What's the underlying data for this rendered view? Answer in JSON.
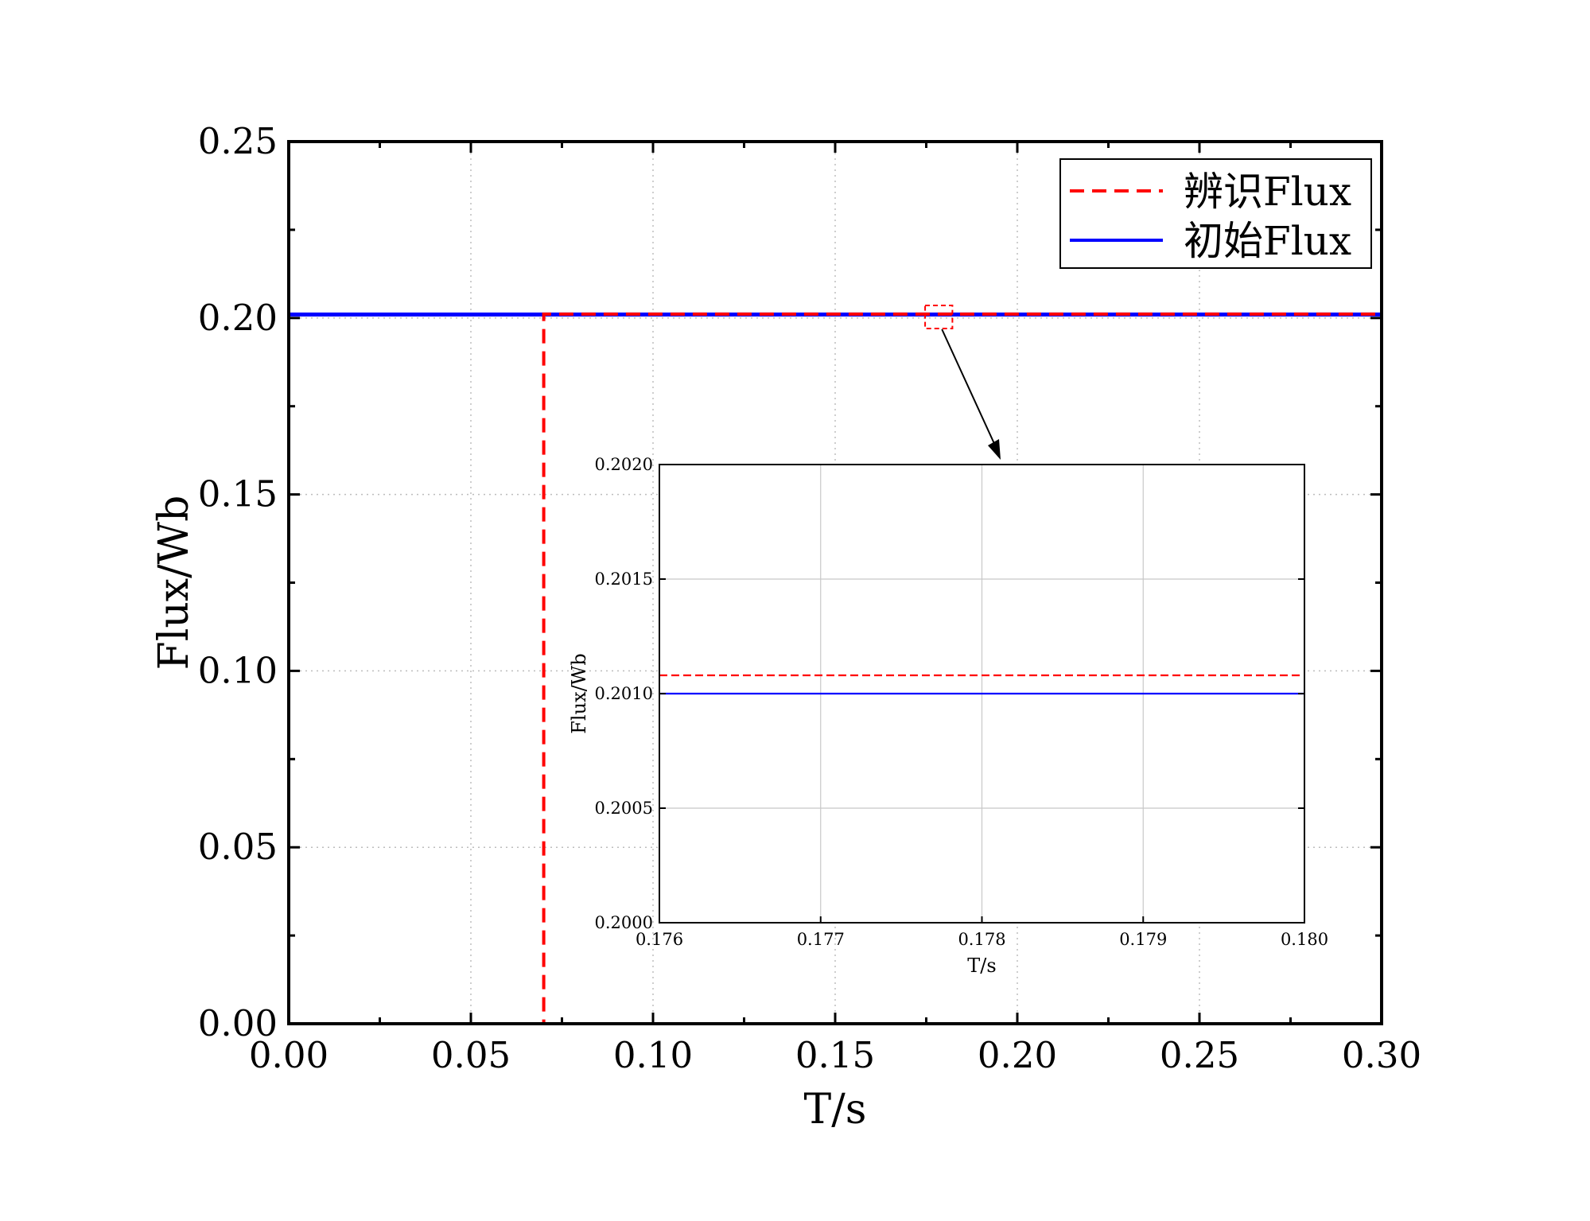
{
  "chart_data": [
    {
      "type": "line",
      "title": "",
      "xlabel": "T/s",
      "ylabel": "Flux/Wb",
      "xlim": [
        0.0,
        0.3
      ],
      "ylim": [
        0.0,
        0.25
      ],
      "xticks": [
        "0.00",
        "0.05",
        "0.10",
        "0.15",
        "0.20",
        "0.25",
        "0.30"
      ],
      "yticks": [
        "0.00",
        "0.05",
        "0.10",
        "0.15",
        "0.20",
        "0.25"
      ],
      "grid": true,
      "legend_position": "top-right",
      "series": [
        {
          "name": "辨识Flux",
          "color": "#ff0000",
          "style": "dashed",
          "x": [
            0.0,
            0.07,
            0.07,
            0.08,
            0.1,
            0.15,
            0.2,
            0.25,
            0.3
          ],
          "y": [
            0.0,
            0.0,
            0.2011,
            0.2011,
            0.2011,
            0.2011,
            0.2011,
            0.2011,
            0.2011
          ]
        },
        {
          "name": "初始Flux",
          "color": "#0000ff",
          "style": "solid",
          "x": [
            0.0,
            0.3
          ],
          "y": [
            0.201,
            0.201
          ]
        }
      ],
      "zoom_region": {
        "x": [
          0.176,
          0.18
        ],
        "y": [
          0.2,
          0.202
        ],
        "color": "#ff0000"
      }
    },
    {
      "type": "line",
      "title": "",
      "xlabel": "T/s",
      "ylabel": "Flux/Wb",
      "xlim": [
        0.176,
        0.18
      ],
      "ylim": [
        0.2,
        0.202
      ],
      "xticks": [
        "0.176",
        "0.177",
        "0.178",
        "0.179",
        "0.180"
      ],
      "yticks": [
        "0.2000",
        "0.2005",
        "0.2010",
        "0.2015",
        "0.2020"
      ],
      "grid": true,
      "series": [
        {
          "name": "辨识Flux",
          "color": "#ff0000",
          "style": "dashed",
          "x": [
            0.176,
            0.18
          ],
          "y": [
            0.20108,
            0.20108
          ]
        },
        {
          "name": "初始Flux",
          "color": "#0000ff",
          "style": "solid",
          "x": [
            0.176,
            0.18
          ],
          "y": [
            0.201,
            0.201
          ]
        }
      ]
    }
  ]
}
